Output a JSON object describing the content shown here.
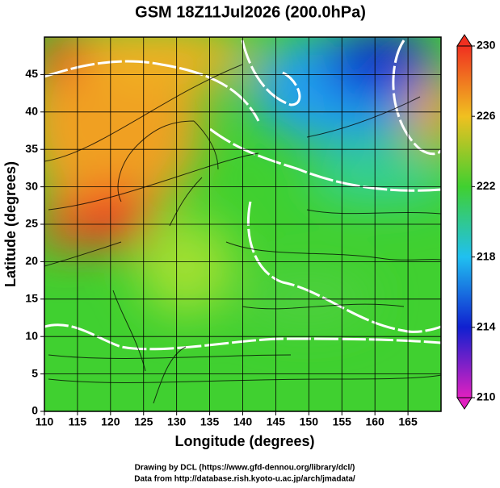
{
  "chart_data": {
    "type": "map",
    "title": "GSM 18Z11Jul2026 (200.0hPa)",
    "xlabel": "Longitude (degrees)",
    "ylabel": "Latitude  (degrees)",
    "xlim": [
      110,
      170
    ],
    "xticks": [
      110,
      115,
      120,
      125,
      130,
      135,
      140,
      145,
      150,
      155,
      160,
      165
    ],
    "ylim": [
      0,
      50
    ],
    "yticks": [
      0,
      5,
      10,
      15,
      20,
      25,
      30,
      35,
      40,
      45
    ],
    "grid": true,
    "colorbar": {
      "lim": [
        210,
        230
      ],
      "ticks": [
        210,
        214,
        218,
        222,
        226,
        230
      ],
      "colors": [
        "#e020c0",
        "#1020d0",
        "#20c0f0",
        "#40d030",
        "#f0c020",
        "#f03020"
      ]
    },
    "credits": [
      "Drawing by DCL (https://www.gfd-dennou.org/library/dcl/)",
      "Data from http://database.rish.kyoto-u.ac.jp/arch/jmadata/"
    ]
  }
}
